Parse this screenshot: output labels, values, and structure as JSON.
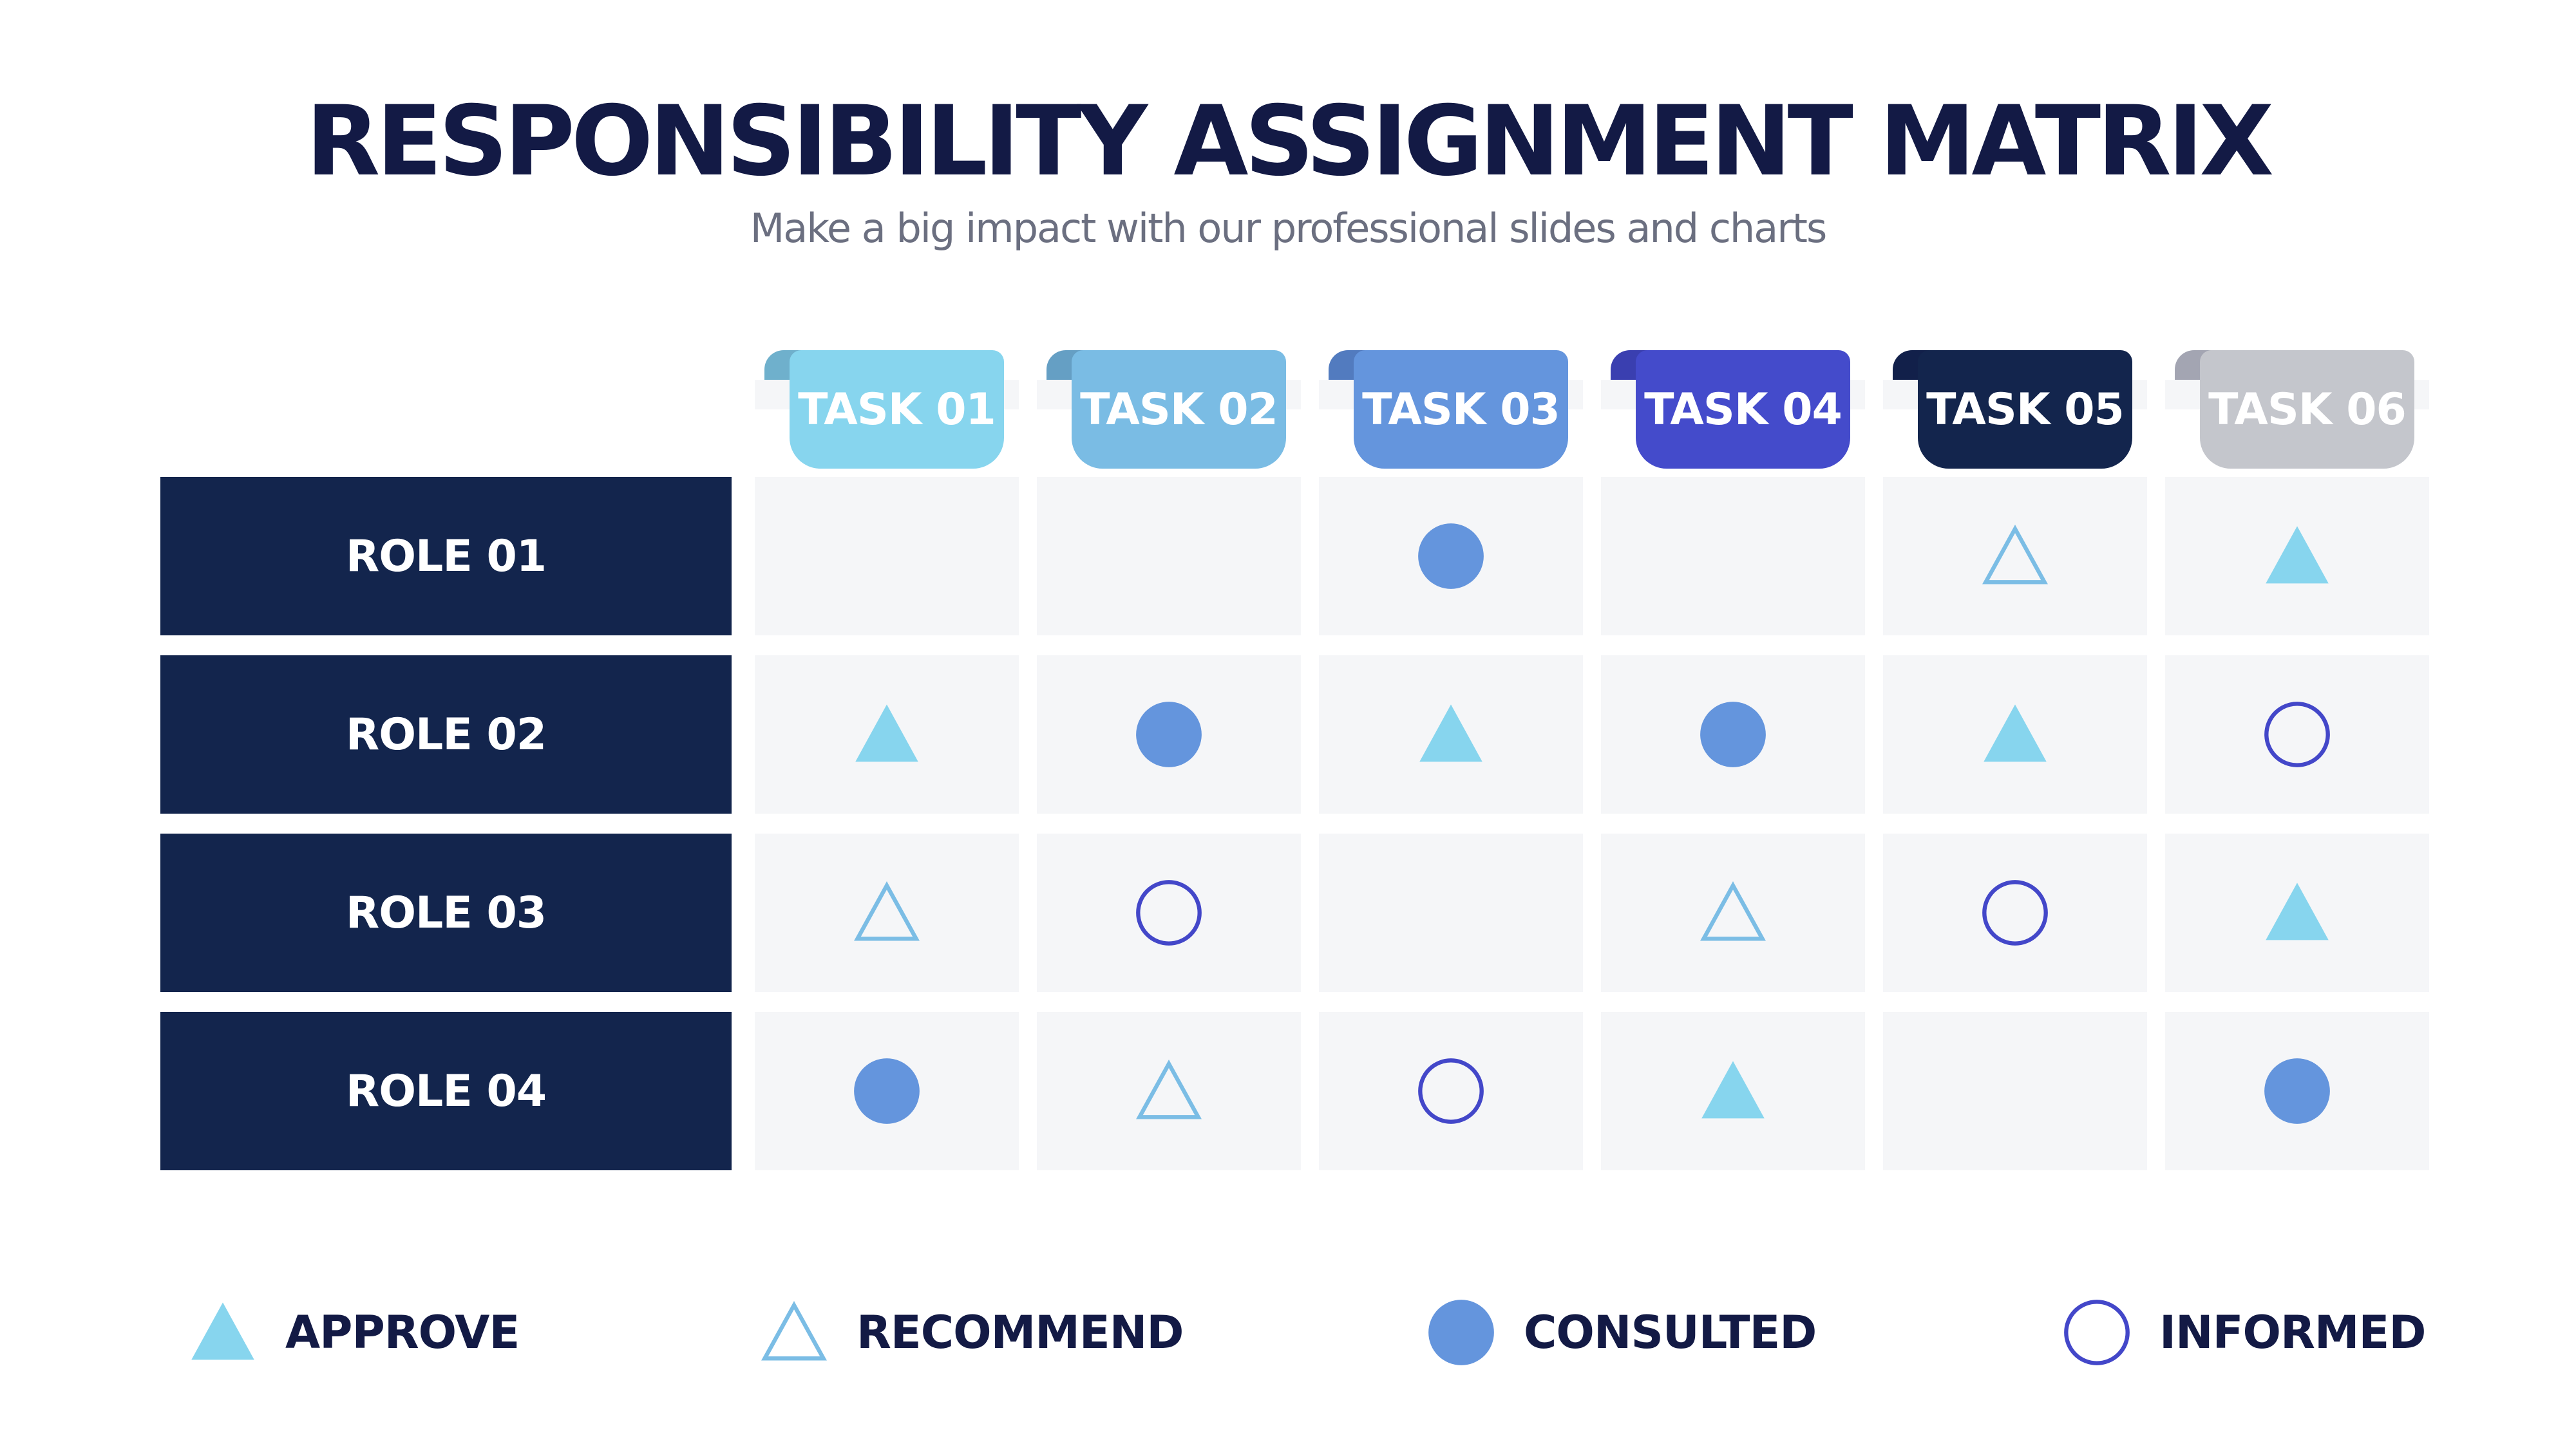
{
  "title": "RESPONSIBILITY ASSIGNMENT MATRIX",
  "subtitle": "Make a big impact with our professional slides and charts",
  "colors": {
    "role_bg": "#13254d",
    "approve": "#87d5ee",
    "recommend": "#7bbde5",
    "consulted": "#6495dd",
    "informed": "#4347c9",
    "cell_bg": "#f5f6f8"
  },
  "tasks": [
    {
      "label": "TASK 01",
      "color": "#87d5ee",
      "fold": "#6fb0cc"
    },
    {
      "label": "TASK 02",
      "color": "#7abce4",
      "fold": "#659fc4"
    },
    {
      "label": "TASK 03",
      "color": "#6495dd",
      "fold": "#527bbf"
    },
    {
      "label": "TASK 04",
      "color": "#444bcb",
      "fold": "#3a3fb0"
    },
    {
      "label": "TASK 05",
      "color": "#13254d",
      "fold": "#12204a"
    },
    {
      "label": "TASK 06",
      "color": "#c4c6cc",
      "fold": "#a3a5b2"
    }
  ],
  "roles": [
    {
      "label": "ROLE 01",
      "cells": [
        null,
        null,
        "consulted",
        null,
        "recommend",
        "approve"
      ]
    },
    {
      "label": "ROLE 02",
      "cells": [
        "approve",
        "consulted",
        "approve",
        "consulted",
        "approve",
        "informed"
      ]
    },
    {
      "label": "ROLE 03",
      "cells": [
        "recommend",
        "informed",
        null,
        "recommend",
        "informed",
        "approve"
      ]
    },
    {
      "label": "ROLE 04",
      "cells": [
        "consulted",
        "recommend",
        "informed",
        "approve",
        null,
        "consulted"
      ]
    }
  ],
  "legend": [
    {
      "key": "approve",
      "label": "APPROVE",
      "icon": "filled-triangle-icon"
    },
    {
      "key": "recommend",
      "label": "RECOMMEND",
      "icon": "outline-triangle-icon"
    },
    {
      "key": "consulted",
      "label": "CONSULTED",
      "icon": "filled-circle-icon"
    },
    {
      "key": "informed",
      "label": "INFORMED",
      "icon": "outline-circle-icon"
    }
  ]
}
